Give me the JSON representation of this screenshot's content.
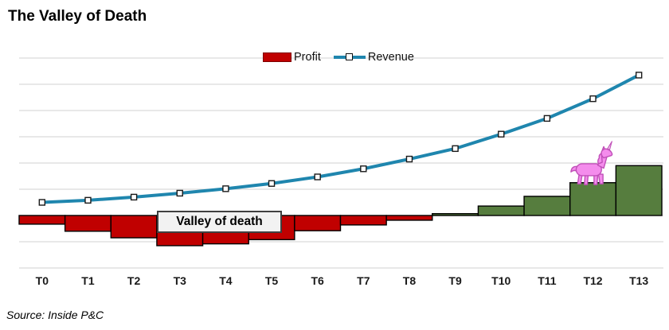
{
  "page": {
    "title": "The Valley of Death",
    "source_note": "Source: Inside P&C"
  },
  "legend": {
    "profit_label": "Profit",
    "revenue_label": "Revenue"
  },
  "annotations": {
    "valley_label": "Valley of death",
    "unicorn": "pink unicorn clipart standing on the T12 profit bar"
  },
  "chart_data": {
    "type": "combo",
    "title": "The Valley of Death",
    "categories": [
      "T0",
      "T1",
      "T2",
      "T3",
      "T4",
      "T5",
      "T6",
      "T7",
      "T8",
      "T9",
      "T10",
      "T11",
      "T12",
      "T13"
    ],
    "series": [
      {
        "name": "Profit",
        "type": "bar",
        "values": [
          -0.33,
          -0.6,
          -0.85,
          -1.15,
          -1.08,
          -0.92,
          -0.58,
          -0.36,
          -0.18,
          0.07,
          0.36,
          0.73,
          1.25,
          1.9
        ],
        "color_negative": "#C00000",
        "color_positive": "#567D3E",
        "border": "#000000"
      },
      {
        "name": "Revenue",
        "type": "line",
        "values": [
          0.5,
          0.58,
          0.7,
          0.85,
          1.02,
          1.22,
          1.47,
          1.78,
          2.15,
          2.55,
          3.1,
          3.7,
          4.45,
          5.35
        ],
        "color": "#1F86AE",
        "marker": "white-square-black-border"
      }
    ],
    "xlabel": "",
    "ylabel": "",
    "ylim": [
      -2,
      6
    ],
    "gridline_every": 1,
    "grid_color": "#D9D9D9",
    "y_axis_labels_visible": false,
    "legend_position": "top-center"
  }
}
